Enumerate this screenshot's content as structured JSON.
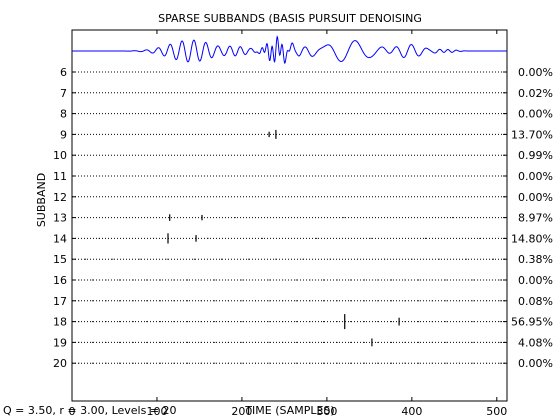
{
  "chart_data": {
    "type": "scatter",
    "title": "SPARSE SUBBANDS (BASIS PURSUIT DENOISING",
    "xlabel": "TIME (SAMPLES)",
    "ylabel": "SUBBAND",
    "footer_note": "Q = 3.50, r = 3.00, Levels = 20",
    "xlim": [
      0,
      512
    ],
    "x_ticks": [
      0,
      100,
      200,
      300,
      400,
      500
    ],
    "subbands": [
      6,
      7,
      8,
      9,
      10,
      11,
      12,
      13,
      14,
      15,
      16,
      17,
      18,
      19,
      20
    ],
    "subband_percent": [
      "0.00%",
      "0.02%",
      "0.00%",
      "13.70%",
      "0.99%",
      "0.00%",
      "0.00%",
      "8.97%",
      "14.80%",
      "0.38%",
      "0.00%",
      "0.08%",
      "56.95%",
      "4.08%",
      "0.00%"
    ],
    "grid": false,
    "signal_color": "#0000ff",
    "dot_color": "#000000",
    "signal_bursts": [
      {
        "center": 140,
        "width": 35,
        "amp": 1.0,
        "period": 14
      },
      {
        "center": 195,
        "width": 18,
        "amp": 0.35,
        "period": 12
      },
      {
        "center": 240,
        "width": 14,
        "amp": 0.9,
        "period": 6
      },
      {
        "center": 255,
        "width": 30,
        "amp": 0.6,
        "period": 16
      },
      {
        "center": 325,
        "width": 35,
        "amp": 1.0,
        "period": 34
      },
      {
        "center": 395,
        "width": 25,
        "amp": 0.6,
        "period": 18
      },
      {
        "center": 440,
        "width": 15,
        "amp": 0.15,
        "period": 10
      }
    ],
    "coefficients": [
      {
        "subband": 9,
        "time": 232,
        "value": 0.2
      },
      {
        "subband": 9,
        "time": 240,
        "value": 0.5
      },
      {
        "subband": 13,
        "time": 115,
        "value": 0.3
      },
      {
        "subband": 13,
        "time": 153,
        "value": 0.2
      },
      {
        "subband": 14,
        "time": 113,
        "value": 0.6
      },
      {
        "subband": 14,
        "time": 146,
        "value": 0.3
      },
      {
        "subband": 18,
        "time": 321,
        "value": 1.0
      },
      {
        "subband": 18,
        "time": 385,
        "value": 0.4
      },
      {
        "subband": 19,
        "time": 353,
        "value": 0.4
      }
    ]
  }
}
